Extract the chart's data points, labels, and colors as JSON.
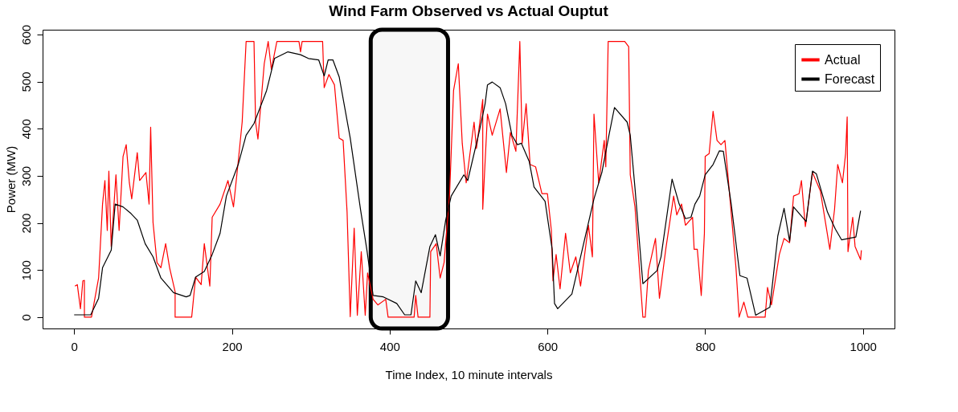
{
  "chart_data": {
    "type": "line",
    "title": "Wind Farm Observed vs Actual Ouptut",
    "xlabel": "Time Index, 10 minute intervals",
    "ylabel": "Power (MW)",
    "xlim": [
      -40,
      1040
    ],
    "ylim": [
      -24,
      610
    ],
    "xticks": [
      0,
      200,
      400,
      600,
      800,
      1000
    ],
    "yticks": [
      0,
      100,
      200,
      300,
      400,
      500,
      600
    ],
    "grid": false,
    "legend": "top right",
    "line_style": "solid",
    "marker": "none",
    "bands": [
      {
        "axis": "x",
        "from": 376,
        "to": 474,
        "color": "#000000"
      }
    ],
    "series": [
      {
        "name": "Actual",
        "color": "#ff0000",
        "x": [
          1,
          4,
          8,
          11,
          13,
          13,
          22,
          31,
          36,
          39,
          42,
          44,
          47,
          53,
          57,
          62,
          66,
          70,
          73,
          80,
          83,
          91,
          95,
          97,
          100,
          105,
          110,
          116,
          121,
          128,
          128,
          149,
          154,
          161,
          165,
          172,
          175,
          185,
          195,
          202,
          208,
          213,
          218,
          228,
          230,
          233,
          241,
          246,
          250,
          257,
          285,
          287,
          289,
          315,
          317,
          323,
          330,
          336,
          341,
          346,
          350,
          355,
          359,
          364,
          369,
          372,
          379,
          385,
          395,
          398,
          431,
          433,
          436,
          451,
          452,
          459,
          464,
          469,
          476,
          481,
          487,
          492,
          497,
          507,
          510,
          518,
          518,
          524,
          530,
          540,
          548,
          553,
          560,
          565,
          568,
          573,
          578,
          585,
          593,
          600,
          605,
          607,
          611,
          616,
          623,
          629,
          636,
          642,
          652,
          657,
          659,
          665,
          672,
          674,
          677,
          698,
          703,
          705,
          711,
          721,
          724,
          728,
          737,
          742,
          750,
          760,
          764,
          770,
          775,
          784,
          786,
          790,
          795,
          799,
          800,
          805,
          810,
          815,
          820,
          825,
          832,
          839,
          843,
          849,
          854,
          876,
          879,
          884,
          894,
          900,
          907,
          912,
          919,
          922,
          927,
          936,
          946,
          958,
          964,
          968,
          974,
          978,
          980,
          981,
          987,
          990,
          997,
          998
        ],
        "values": [
          66,
          69,
          18,
          77,
          78,
          0,
          0,
          83,
          240,
          290,
          184,
          310,
          150,
          302,
          184,
          341,
          366,
          285,
          251,
          349,
          290,
          307,
          240,
          403,
          201,
          116,
          105,
          156,
          105,
          54,
          0,
          0,
          85,
          69,
          156,
          66,
          212,
          240,
          290,
          234,
          330,
          414,
          585,
          585,
          414,
          378,
          538,
          585,
          526,
          585,
          585,
          563,
          585,
          585,
          487,
          515,
          493,
          380,
          375,
          223,
          1,
          189,
          4,
          139,
          4,
          94,
          38,
          26,
          38,
          0,
          0,
          46,
          0,
          0,
          139,
          156,
          83,
          116,
          262,
          481,
          538,
          369,
          285,
          414,
          358,
          462,
          229,
          431,
          386,
          442,
          307,
          392,
          352,
          585,
          369,
          453,
          324,
          319,
          262,
          262,
          184,
          77,
          133,
          60,
          178,
          94,
          128,
          66,
          195,
          128,
          431,
          285,
          375,
          319,
          585,
          585,
          574,
          302,
          234,
          0,
          0,
          99,
          167,
          40,
          144,
          257,
          217,
          240,
          195,
          212,
          144,
          144,
          46,
          178,
          341,
          347,
          437,
          375,
          366,
          375,
          240,
          105,
          0,
          32,
          0,
          0,
          63,
          26,
          133,
          167,
          158,
          257,
          262,
          290,
          192,
          307,
          268,
          144,
          229,
          324,
          285,
          347,
          425,
          139,
          212,
          150,
          122,
          142
        ]
      },
      {
        "name": "Forecast",
        "color": "#000000",
        "x": [
          0,
          21,
          31,
          36,
          47,
          52,
          62,
          72,
          80,
          90,
          100,
          110,
          126,
          142,
          147,
          154,
          165,
          175,
          185,
          193,
          208,
          218,
          228,
          244,
          254,
          271,
          287,
          297,
          310,
          317,
          322,
          328,
          336,
          350,
          363,
          371,
          379,
          392,
          409,
          419,
          427,
          433,
          440,
          451,
          458,
          464,
          471,
          478,
          494,
          499,
          514,
          521,
          524,
          530,
          540,
          547,
          555,
          562,
          567,
          577,
          583,
          597,
          606,
          609,
          613,
          631,
          642,
          659,
          669,
          678,
          685,
          701,
          705,
          711,
          721,
          739,
          744,
          758,
          767,
          775,
          782,
          787,
          793,
          800,
          810,
          818,
          823,
          833,
          844,
          853,
          864,
          882,
          892,
          900,
          907,
          912,
          928,
          936,
          941,
          955,
          965,
          973,
          991,
          997
        ],
        "values": [
          5,
          5,
          40,
          105,
          142,
          240,
          234,
          220,
          206,
          156,
          128,
          83,
          52,
          43,
          46,
          85,
          97,
          133,
          178,
          257,
          324,
          386,
          411,
          481,
          549,
          563,
          557,
          549,
          546,
          512,
          546,
          546,
          510,
          380,
          229,
          144,
          46,
          43,
          29,
          5,
          5,
          77,
          52,
          150,
          175,
          130,
          206,
          257,
          302,
          290,
          397,
          453,
          493,
          499,
          487,
          453,
          386,
          366,
          369,
          330,
          276,
          246,
          144,
          29,
          18,
          49,
          128,
          251,
          307,
          386,
          445,
          414,
          386,
          274,
          71,
          99,
          128,
          293,
          240,
          209,
          212,
          240,
          257,
          302,
          324,
          353,
          352,
          240,
          88,
          83,
          4,
          21,
          172,
          231,
          161,
          234,
          203,
          310,
          304,
          223,
          187,
          164,
          170,
          226
        ]
      }
    ]
  }
}
